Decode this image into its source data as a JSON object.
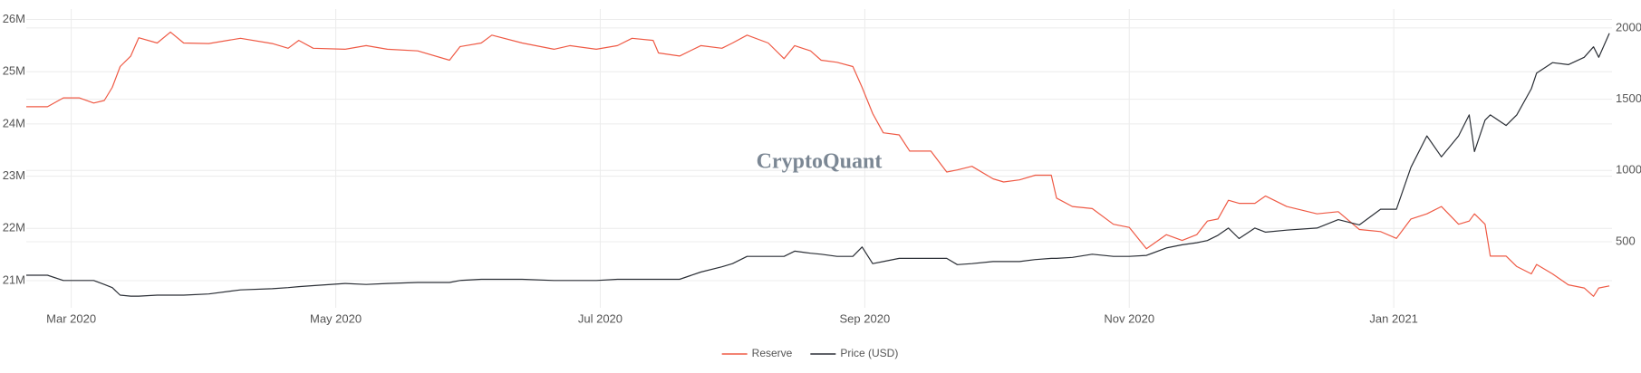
{
  "chart_data": {
    "type": "line",
    "watermark": "CryptoQuant",
    "x": [
      1.66,
      1.82,
      1.94,
      2.06,
      2.17,
      2.25,
      2.31,
      2.37,
      2.45,
      2.51,
      2.65,
      2.75,
      2.85,
      3.04,
      3.28,
      3.52,
      3.64,
      3.72,
      3.83,
      4.07,
      4.23,
      4.39,
      4.62,
      4.86,
      4.94,
      5.1,
      5.18,
      5.41,
      5.65,
      5.77,
      5.97,
      6.13,
      6.24,
      6.4,
      6.44,
      6.6,
      6.76,
      6.92,
      7.0,
      7.11,
      7.27,
      7.39,
      7.47,
      7.59,
      7.67,
      7.79,
      7.91,
      7.98,
      8.06,
      8.14,
      8.26,
      8.34,
      8.5,
      8.62,
      8.7,
      8.81,
      8.97,
      9.05,
      9.17,
      9.29,
      9.41,
      9.45,
      9.57,
      9.72,
      9.88,
      10.0,
      10.13,
      10.28,
      10.4,
      10.51,
      10.59,
      10.67,
      10.75,
      10.83,
      10.95,
      11.03,
      11.19,
      11.42,
      11.58,
      11.74,
      11.9,
      12.02,
      12.13,
      12.25,
      12.36,
      12.49,
      12.57,
      12.61,
      12.69,
      12.73,
      12.85,
      12.93,
      13.04,
      13.08,
      13.2,
      13.32,
      13.44,
      13.51,
      13.55,
      13.63
    ],
    "series": [
      {
        "name": "Reserve",
        "color": "#ef5a45",
        "values": [
          24330000,
          24330000,
          24500000,
          24500000,
          24400000,
          24450000,
          24700000,
          25100000,
          25300000,
          25650000,
          25550000,
          25760000,
          25550000,
          25540000,
          25640000,
          25540000,
          25450000,
          25600000,
          25450000,
          25430000,
          25500000,
          25430000,
          25400000,
          25220000,
          25480000,
          25550000,
          25700000,
          25550000,
          25430000,
          25500000,
          25430000,
          25500000,
          25640000,
          25600000,
          25360000,
          25300000,
          25500000,
          25450000,
          25550000,
          25700000,
          25550000,
          25250000,
          25500000,
          25400000,
          25220000,
          25180000,
          25100000,
          24700000,
          24200000,
          23830000,
          23790000,
          23480000,
          23480000,
          23080000,
          23120000,
          23190000,
          22950000,
          22890000,
          22930000,
          23020000,
          23020000,
          22580000,
          22420000,
          22380000,
          22080000,
          22020000,
          21610000,
          21880000,
          21770000,
          21880000,
          22140000,
          22180000,
          22540000,
          22480000,
          22480000,
          22620000,
          22420000,
          22280000,
          22320000,
          21980000,
          21940000,
          21810000,
          22180000,
          22280000,
          22420000,
          22080000,
          22140000,
          22280000,
          22080000,
          21470000,
          21470000,
          21270000,
          21130000,
          21310000,
          21130000,
          20920000,
          20860000,
          20700000,
          20860000,
          20900000
        ]
      },
      {
        "name": "Price (USD)",
        "color": "#2b2f36",
        "axis": "y2",
        "values": [
          265,
          265,
          228,
          228,
          228,
          200,
          178,
          125,
          118,
          118,
          125,
          125,
          125,
          133,
          162,
          170,
          178,
          185,
          192,
          207,
          200,
          207,
          214,
          214,
          228,
          236,
          236,
          236,
          228,
          228,
          228,
          236,
          236,
          236,
          236,
          236,
          287,
          324,
          346,
          397,
          397,
          397,
          434,
          419,
          412,
          397,
          397,
          463,
          346,
          361,
          383,
          383,
          383,
          383,
          339,
          346,
          361,
          361,
          361,
          375,
          383,
          383,
          390,
          412,
          397,
          397,
          404,
          456,
          478,
          493,
          508,
          545,
          596,
          522,
          596,
          567,
          581,
          596,
          655,
          618,
          728,
          728,
          1022,
          1243,
          1096,
          1243,
          1390,
          1133,
          1353,
          1390,
          1316,
          1390,
          1574,
          1684,
          1757,
          1743,
          1794,
          1868,
          1794,
          1963
        ]
      }
    ],
    "xlim": [
      1.66,
      13.65
    ],
    "xticks": [
      {
        "value": 2,
        "label": "Mar 2020"
      },
      {
        "value": 4,
        "label": "May 2020"
      },
      {
        "value": 6,
        "label": "Jul 2020"
      },
      {
        "value": 8,
        "label": "Sep 2020"
      },
      {
        "value": 10,
        "label": "Nov 2020"
      },
      {
        "value": 12,
        "label": "Jan 2021"
      }
    ],
    "ylim": [
      20480000,
      26200000
    ],
    "yticks": [
      {
        "value": 21000000,
        "label": "21M"
      },
      {
        "value": 22000000,
        "label": "22M"
      },
      {
        "value": 23000000,
        "label": "23M"
      },
      {
        "value": 24000000,
        "label": "24M"
      },
      {
        "value": 25000000,
        "label": "25M"
      },
      {
        "value": 26000000,
        "label": "26M"
      }
    ],
    "y2lim": [
      36,
      2133
    ],
    "y2ticks": [
      500,
      1000,
      1500,
      2000
    ],
    "grid": true,
    "legend": "bottom"
  }
}
